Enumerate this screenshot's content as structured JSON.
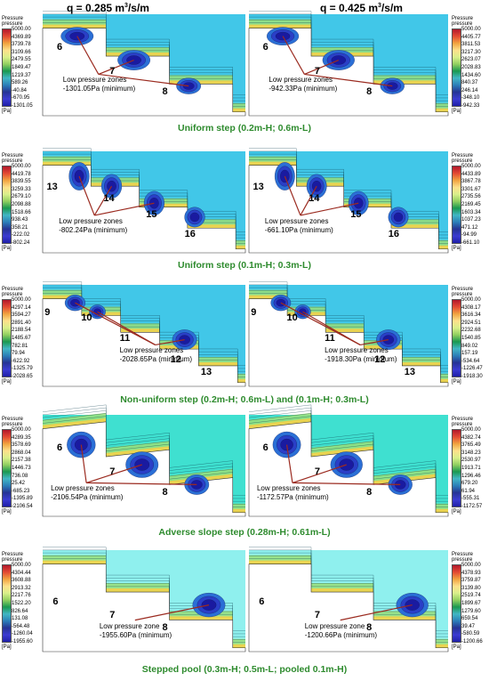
{
  "column_headers": {
    "left_prefix": "q = 0.285 m",
    "left_sup": "3",
    "left_suffix": "/s/m",
    "right_prefix": "q = 0.425 m",
    "right_sup": "3",
    "right_suffix": "/s/m"
  },
  "legend_title": [
    "Pressure",
    "pressure"
  ],
  "legend_unit": "[Pa]",
  "legend_colors": [
    "#b2182b",
    "#e34a33",
    "#f1a340",
    "#fee08b",
    "#d9ef8b",
    "#91cf60",
    "#1a9850",
    "#41b6c4",
    "#2c7fb8",
    "#253494",
    "#3b3bd1",
    "#1f1fa8"
  ],
  "rows": [
    {
      "caption": "Uniform step (0.2m-H; 0.6m-L)",
      "left": {
        "legend": [
          "5000.00",
          "4369.89",
          "3739.78",
          "3109.66",
          "2479.55",
          "1849.47",
          "1219.37",
          "589.26",
          "-40.84",
          "-670.95",
          "-1301.05"
        ],
        "steps": [
          "6",
          "7",
          "8"
        ],
        "label": [
          "Low pressure zones",
          "-1301.05Pa (minimum)"
        ]
      },
      "right": {
        "legend": [
          "5000.00",
          "4405.77",
          "3811.53",
          "3217.30",
          "2623.07",
          "2028.83",
          "1434.60",
          "840.37",
          "246.14",
          "-348.10",
          "-942.33"
        ],
        "steps": [
          "6",
          "7",
          "8"
        ],
        "label": [
          "Low pressure zones",
          "-942.33Pa (minimum)"
        ]
      }
    },
    {
      "caption": "Uniform step (0.1m-H; 0.3m-L)",
      "left": {
        "legend": [
          "5000.00",
          "4419.78",
          "3839.55",
          "3259.33",
          "2679.10",
          "2098.88",
          "1518.66",
          "938.43",
          "358.21",
          "-222.02",
          "-802.24"
        ],
        "steps": [
          "13",
          "14",
          "15",
          "16"
        ],
        "label": [
          "Low pressure zones",
          "-802.24Pa (minimum)"
        ]
      },
      "right": {
        "legend": [
          "5000.00",
          "4433.89",
          "3867.78",
          "3301.67",
          "2735.56",
          "2169.45",
          "1603.34",
          "1037.23",
          "471.12",
          "-94.99",
          "-661.10"
        ],
        "steps": [
          "13",
          "14",
          "15",
          "16"
        ],
        "label": [
          "Low pressure zones",
          "-661.10Pa (minimum)"
        ]
      }
    },
    {
      "caption": "Non-uniform step (0.2m-H; 0.6m-L) and (0.1m-H; 0.3m-L)",
      "left": {
        "legend": [
          "5000.00",
          "4297.14",
          "3594.27",
          "2891.40",
          "2188.54",
          "1485.67",
          "782.81",
          "79.94",
          "-622.92",
          "-1325.79",
          "-2028.65"
        ],
        "steps": [
          "9",
          "10",
          "11",
          "12",
          "13"
        ],
        "label": [
          "Low pressure zones",
          "-2028.65Pa (minimum)"
        ]
      },
      "right": {
        "legend": [
          "5000.00",
          "4308.17",
          "3616.34",
          "2924.51",
          "2232.68",
          "1540.85",
          "849.02",
          "157.19",
          "-534.64",
          "-1226.47",
          "-1918.30"
        ],
        "steps": [
          "9",
          "10",
          "11",
          "12",
          "13"
        ],
        "label": [
          "Low pressure zones",
          "-1918.30Pa (minimum)"
        ]
      }
    },
    {
      "caption": "Adverse slope step (0.28m-H; 0.61m-L)",
      "left": {
        "legend": [
          "5000.00",
          "4289.35",
          "3578.69",
          "2868.04",
          "2157.38",
          "1446.73",
          "736.08",
          "25.42",
          "-685.23",
          "-1395.89",
          "-2106.54"
        ],
        "steps": [
          "6",
          "7",
          "8"
        ],
        "label": [
          "Low pressure zones",
          "-2106.54Pa (minimum)"
        ]
      },
      "right": {
        "legend": [
          "5000.00",
          "4382.74",
          "3765.49",
          "3148.23",
          "2530.97",
          "1913.71",
          "1296.46",
          "679.20",
          "61.94",
          "-555.31",
          "-1172.57"
        ],
        "steps": [
          "6",
          "7",
          "8"
        ],
        "label": [
          "Low pressure zones",
          "-1172.57Pa (minimum)"
        ]
      }
    },
    {
      "caption": "Stepped pool (0.3m-H; 0.5m-L; pooled 0.1m-H)",
      "left": {
        "legend": [
          "5000.00",
          "4304.44",
          "3608.88",
          "2913.32",
          "2217.76",
          "1522.20",
          "826.64",
          "131.08",
          "-564.48",
          "-1260.04",
          "-1955.60"
        ],
        "steps": [
          "6",
          "7",
          "8"
        ],
        "label": [
          "Low pressure zone",
          "-1955.60Pa (minimum)"
        ]
      },
      "right": {
        "legend": [
          "5000.00",
          "4378.93",
          "3759.87",
          "3139.80",
          "2519.74",
          "1899.67",
          "1279.60",
          "659.54",
          "39.47",
          "-580.59",
          "-1200.66"
        ],
        "steps": [
          "6",
          "7",
          "8"
        ],
        "label": [
          "Low pressure zone",
          "-1200.66Pa (minimum)"
        ]
      }
    }
  ]
}
